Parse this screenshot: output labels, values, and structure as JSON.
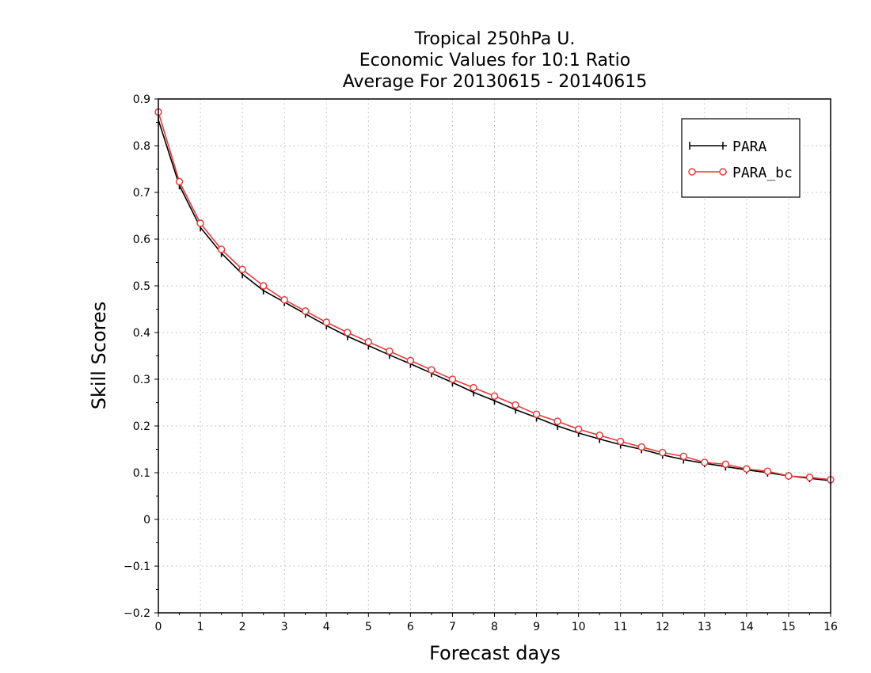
{
  "chart_data": {
    "type": "line",
    "title_lines": [
      "Tropical 250hPa U.",
      "Economic Values for 10:1 Ratio",
      "Average For 20130615 - 20140615"
    ],
    "xlabel": "Forecast days",
    "ylabel": "Skill Scores",
    "xlim": [
      0,
      16
    ],
    "ylim": [
      -0.2,
      0.9
    ],
    "x_ticks": [
      0,
      1,
      2,
      3,
      4,
      5,
      6,
      7,
      8,
      9,
      10,
      11,
      12,
      13,
      14,
      15,
      16
    ],
    "y_ticks": [
      -0.2,
      -0.1,
      0,
      0.1,
      0.2,
      0.3,
      0.4,
      0.5,
      0.6,
      0.7,
      0.8,
      0.9
    ],
    "grid": true,
    "legend_position": "top-right",
    "x": [
      0,
      0.5,
      1,
      1.5,
      2,
      2.5,
      3,
      3.5,
      4,
      4.5,
      5,
      5.5,
      6,
      6.5,
      7,
      7.5,
      8,
      8.5,
      9,
      9.5,
      10,
      10.5,
      11,
      11.5,
      12,
      12.5,
      13,
      13.5,
      14,
      14.5,
      15,
      15.5,
      16
    ],
    "series": [
      {
        "name": "PARA",
        "color": "#000000",
        "marker": "plus",
        "values": [
          0.855,
          0.715,
          0.625,
          0.57,
          0.525,
          0.49,
          0.465,
          0.44,
          0.415,
          0.392,
          0.372,
          0.352,
          0.333,
          0.313,
          0.293,
          0.272,
          0.254,
          0.235,
          0.218,
          0.2,
          0.185,
          0.172,
          0.16,
          0.15,
          0.138,
          0.128,
          0.12,
          0.113,
          0.106,
          0.1,
          0.093,
          0.088,
          0.083
        ]
      },
      {
        "name": "PARA_bc",
        "color": "#e83a3a",
        "marker": "circle",
        "values": [
          0.872,
          0.723,
          0.634,
          0.578,
          0.535,
          0.5,
          0.47,
          0.446,
          0.422,
          0.4,
          0.38,
          0.36,
          0.34,
          0.32,
          0.3,
          0.282,
          0.264,
          0.245,
          0.225,
          0.21,
          0.193,
          0.18,
          0.167,
          0.155,
          0.143,
          0.135,
          0.122,
          0.118,
          0.108,
          0.103,
          0.093,
          0.09,
          0.085
        ]
      }
    ]
  }
}
